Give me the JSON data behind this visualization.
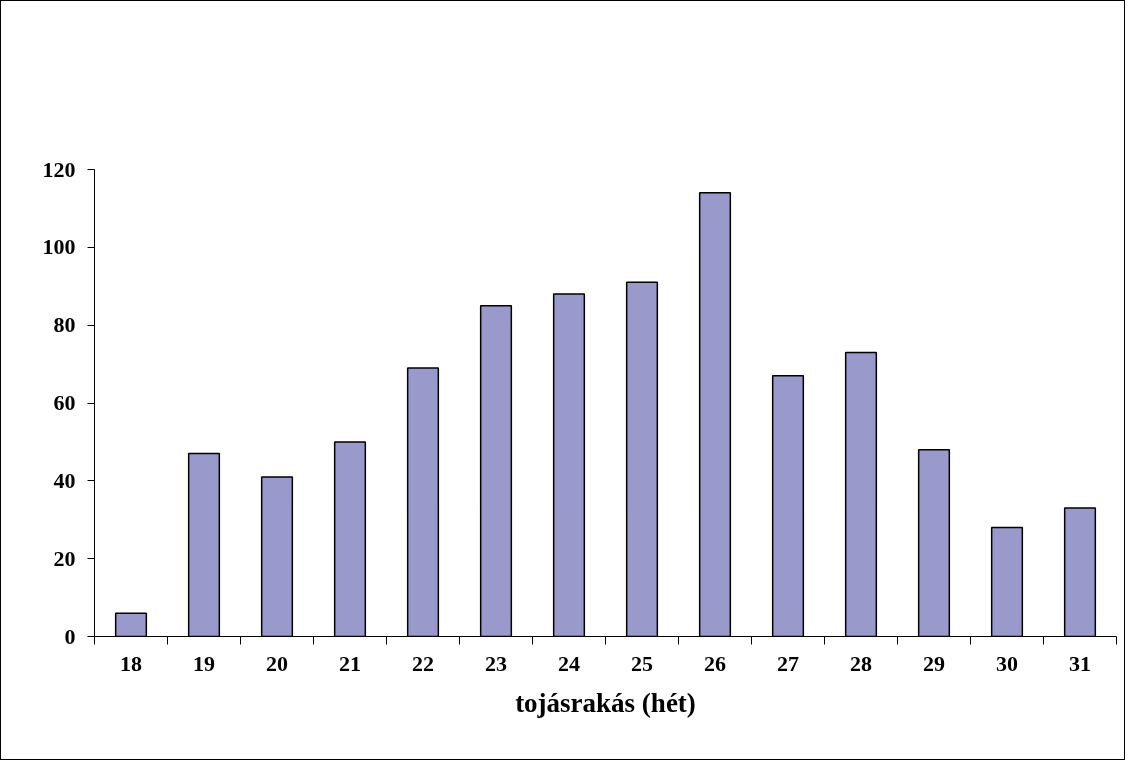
{
  "chart_data": {
    "type": "bar",
    "xlabel": "tojásrakás (hét)",
    "categories": [
      "18",
      "19",
      "20",
      "21",
      "22",
      "23",
      "24",
      "25",
      "26",
      "27",
      "28",
      "29",
      "30",
      "31"
    ],
    "values": [
      6,
      47,
      41,
      50,
      69,
      85,
      88,
      91,
      114,
      67,
      73,
      48,
      28,
      33
    ],
    "color": "#9999cc",
    "ylim": [
      0,
      120
    ],
    "yticks": [
      0,
      20,
      40,
      60,
      80,
      100,
      120
    ],
    "grid": false
  }
}
